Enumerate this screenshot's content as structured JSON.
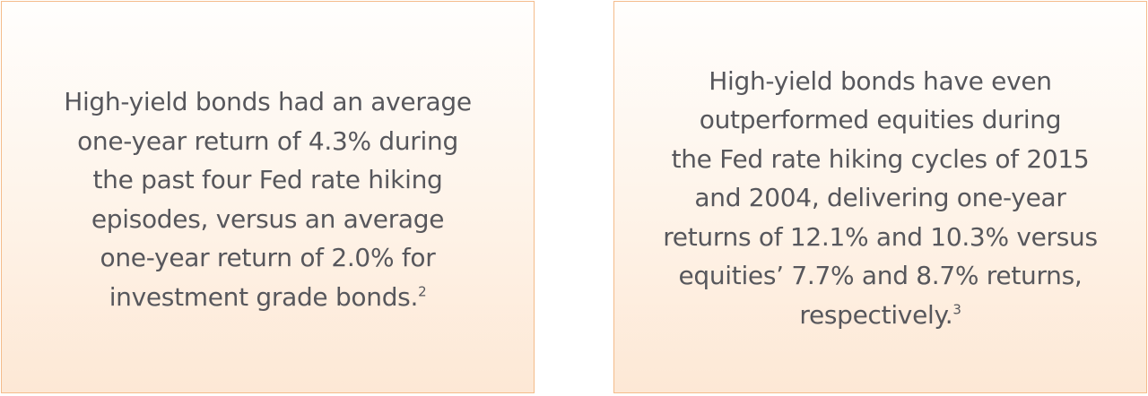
{
  "callouts": [
    {
      "lines": [
        "High-yield bonds had an average",
        "one-year return of 4.3% during",
        "the past four Fed rate hiking",
        "episodes, versus an average",
        "one-year return of 2.0% for",
        "investment grade bonds."
      ],
      "footnote": "2"
    },
    {
      "lines": [
        "High-yield bonds have even",
        "outperformed equities during",
        "the Fed rate hiking cycles of 2015",
        "and 2004, delivering one-year",
        "returns of 12.1% and 10.3% versus",
        "equities’ 7.7% and 8.7% returns,",
        "respectively."
      ],
      "footnote": "3"
    }
  ],
  "colors": {
    "border": "#f4bc8b",
    "text": "#57575c",
    "fill_bottom": "#fde8d5"
  }
}
